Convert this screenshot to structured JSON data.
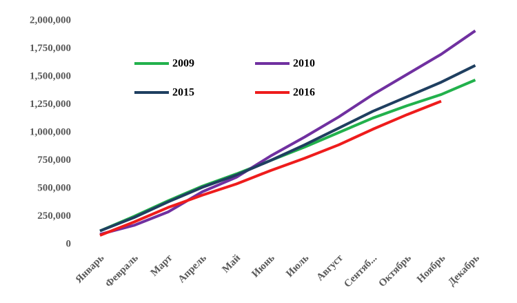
{
  "chart_data": {
    "type": "line",
    "categories": [
      "Январь",
      "Февраль",
      "Март",
      "Апрель",
      "Май",
      "Июнь",
      "Июль",
      "Август",
      "Сентяб...",
      "Октябрь",
      "Ноябрь",
      "Декабрь"
    ],
    "series": [
      {
        "name": "2009",
        "color": "#22b14c",
        "values": [
          120000,
          250000,
          390000,
          520000,
          630000,
          750000,
          870000,
          1000000,
          1130000,
          1240000,
          1340000,
          1470000
        ]
      },
      {
        "name": "2010",
        "color": "#7030a0",
        "values": [
          90000,
          170000,
          290000,
          470000,
          600000,
          790000,
          960000,
          1140000,
          1340000,
          1520000,
          1700000,
          1910000
        ]
      },
      {
        "name": "2015",
        "color": "#1f3f60",
        "values": [
          120000,
          240000,
          380000,
          510000,
          620000,
          750000,
          890000,
          1040000,
          1190000,
          1320000,
          1450000,
          1600000
        ]
      },
      {
        "name": "2016",
        "color": "#ee1c1c",
        "values": [
          80000,
          200000,
          330000,
          440000,
          540000,
          660000,
          770000,
          890000,
          1030000,
          1160000,
          1280000,
          null
        ]
      }
    ],
    "ylim": [
      0,
      2000000
    ],
    "yticks": [
      0,
      {
        "value": 250000,
        "label": "250,000"
      },
      {
        "value": 500000,
        "label": "500,000"
      },
      {
        "value": 750000,
        "label": "750,000"
      },
      {
        "value": 1000000,
        "label": "1,000,000"
      },
      {
        "value": 1250000,
        "label": "1,250,000"
      },
      {
        "value": 1500000,
        "label": "1,500,000"
      },
      {
        "value": 1750000,
        "label": "1,750,000"
      },
      {
        "value": 2000000,
        "label": "2,000,000"
      }
    ],
    "grid": false,
    "legend_position": "upper left"
  }
}
